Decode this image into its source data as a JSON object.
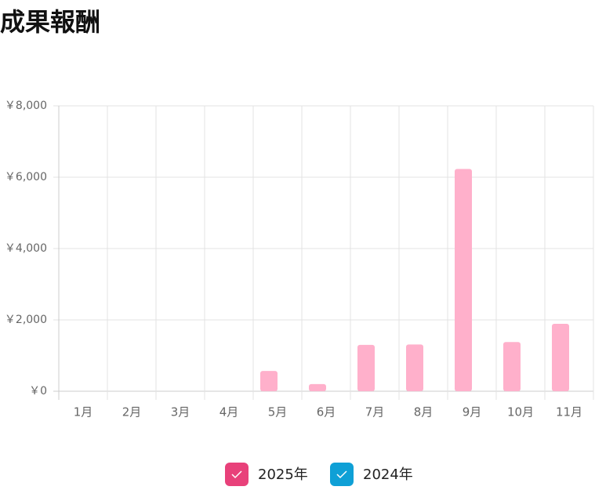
{
  "chart_data": {
    "type": "bar",
    "title": "成果報酬",
    "categories": [
      "1月",
      "2月",
      "3月",
      "4月",
      "5月",
      "6月",
      "7月",
      "8月",
      "9月",
      "10月",
      "11月"
    ],
    "series": [
      {
        "name": "2025年",
        "color": "#ffb0cb",
        "legend_color": "#e8417a",
        "values": [
          0,
          0,
          0,
          0,
          570,
          200,
          1300,
          1310,
          6230,
          1380,
          1890
        ]
      },
      {
        "name": "2024年",
        "color": "#9ad7ef",
        "legend_color": "#0fa0d6",
        "values": [
          0,
          0,
          0,
          0,
          0,
          0,
          0,
          0,
          0,
          0,
          0
        ]
      }
    ],
    "ylim": [
      0,
      8000
    ],
    "yticks": [
      {
        "value": 0,
        "label": "￥0"
      },
      {
        "value": 2000,
        "label": "￥2,000"
      },
      {
        "value": 4000,
        "label": "￥4,000"
      },
      {
        "value": 6000,
        "label": "￥6,000"
      },
      {
        "value": 8000,
        "label": "￥8,000"
      }
    ],
    "grid": true
  }
}
